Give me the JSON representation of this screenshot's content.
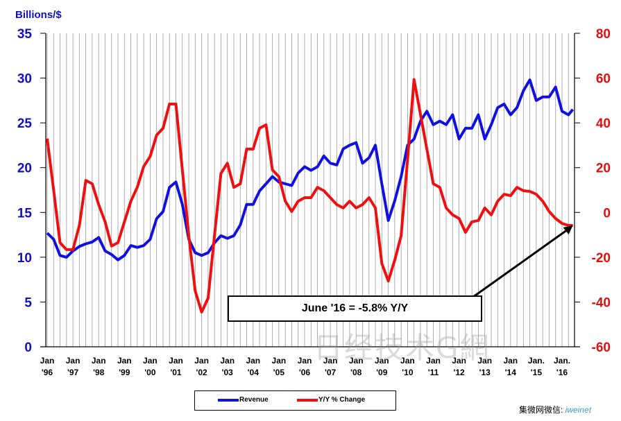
{
  "chart_data": {
    "type": "line",
    "title": "",
    "ylabel": "Billions/$",
    "ylim": [
      0,
      35
    ],
    "y2lim": [
      -60,
      80
    ],
    "yticks": [
      "0",
      "5",
      "10",
      "15",
      "20",
      "25",
      "30",
      "35"
    ],
    "y2ticks": [
      "-60",
      "-40",
      "-20",
      "0",
      "20",
      "40",
      "60",
      "80"
    ],
    "xlim": [
      1996.0,
      2016.42
    ],
    "xticks": [
      {
        "l1": "Jan",
        "l2": "'96"
      },
      {
        "l1": "Jan",
        "l2": "'97"
      },
      {
        "l1": "Jan",
        "l2": "'98"
      },
      {
        "l1": "Jan",
        "l2": "'99"
      },
      {
        "l1": "Jan",
        "l2": "'00"
      },
      {
        "l1": "Jan",
        "l2": "'01"
      },
      {
        "l1": "Jan",
        "l2": "'02"
      },
      {
        "l1": "Jan",
        "l2": "'03"
      },
      {
        "l1": "Jan",
        "l2": "'04"
      },
      {
        "l1": "Jan",
        "l2": "'05"
      },
      {
        "l1": "Jan",
        "l2": "'06"
      },
      {
        "l1": "Jan",
        "l2": "'07"
      },
      {
        "l1": "Jan",
        "l2": "'08"
      },
      {
        "l1": "Jan",
        "l2": "'09"
      },
      {
        "l1": "Jan",
        "l2": "'10"
      },
      {
        "l1": "Jan",
        "l2": "'11"
      },
      {
        "l1": "Jan",
        "l2": "'12"
      },
      {
        "l1": "Jan",
        "l2": "'13"
      },
      {
        "l1": "Jan",
        "l2": "'14"
      },
      {
        "l1": "Jan.",
        "l2": "'15"
      },
      {
        "l1": "Jan.",
        "l2": "'16"
      }
    ],
    "grid": {
      "vertical": true,
      "horizontal": false
    },
    "legend_placement": "bottom",
    "x": [
      1996.0,
      1996.25,
      1996.5,
      1996.75,
      1997.0,
      1997.25,
      1997.5,
      1997.75,
      1998.0,
      1998.25,
      1998.5,
      1998.75,
      1999.0,
      1999.25,
      1999.5,
      1999.75,
      2000.0,
      2000.25,
      2000.5,
      2000.75,
      2001.0,
      2001.25,
      2001.5,
      2001.75,
      2002.0,
      2002.25,
      2002.5,
      2002.75,
      2003.0,
      2003.25,
      2003.5,
      2003.75,
      2004.0,
      2004.25,
      2004.5,
      2004.75,
      2005.0,
      2005.25,
      2005.5,
      2005.75,
      2006.0,
      2006.25,
      2006.5,
      2006.75,
      2007.0,
      2007.25,
      2007.5,
      2007.75,
      2008.0,
      2008.25,
      2008.5,
      2008.75,
      2009.0,
      2009.25,
      2009.5,
      2009.75,
      2010.0,
      2010.25,
      2010.5,
      2010.75,
      2011.0,
      2011.25,
      2011.5,
      2011.75,
      2012.0,
      2012.25,
      2012.5,
      2012.75,
      2013.0,
      2013.25,
      2013.5,
      2013.75,
      2014.0,
      2014.25,
      2014.5,
      2014.75,
      2015.0,
      2015.25,
      2015.5,
      2015.75,
      2016.0,
      2016.25,
      2016.42
    ],
    "series": [
      {
        "name": "Revenue",
        "axis": "left",
        "color": "#1010e0",
        "values": [
          12.7,
          12.0,
          10.2,
          10.0,
          10.7,
          11.2,
          11.5,
          11.7,
          12.2,
          10.7,
          10.3,
          9.7,
          10.2,
          11.3,
          11.1,
          11.3,
          12.0,
          14.3,
          15.1,
          17.8,
          18.4,
          15.9,
          12.0,
          10.5,
          10.2,
          10.5,
          11.6,
          12.4,
          12.1,
          12.4,
          13.6,
          15.9,
          15.9,
          17.4,
          18.2,
          19.0,
          18.4,
          18.2,
          18.0,
          19.4,
          20.1,
          19.7,
          20.1,
          21.3,
          20.5,
          20.3,
          22.1,
          22.5,
          22.8,
          20.5,
          21.1,
          22.5,
          18.2,
          14.1,
          16.3,
          19.0,
          22.5,
          23.2,
          25.2,
          26.3,
          24.8,
          25.2,
          24.8,
          25.9,
          23.2,
          24.4,
          24.4,
          25.9,
          23.2,
          24.8,
          26.7,
          27.1,
          25.9,
          26.7,
          28.6,
          29.8,
          27.5,
          27.9,
          27.9,
          29.0,
          26.3,
          25.9,
          26.5
        ]
      },
      {
        "name": "Y/Y % Change",
        "axis": "right",
        "color": "#ee1010",
        "values": [
          33,
          10,
          -13.5,
          -16.6,
          -16.6,
          -5.8,
          14.3,
          12.8,
          3.5,
          -4.2,
          -15,
          -13.5,
          -4.2,
          5,
          11.2,
          20.5,
          25,
          34.5,
          37.6,
          48.4,
          48.4,
          19,
          -10.4,
          -35,
          -44.5,
          -38.3,
          -10.4,
          17.4,
          22,
          11.2,
          12.8,
          28.3,
          28.3,
          37.6,
          39.1,
          19,
          16,
          5,
          0.4,
          5,
          6.6,
          6.6,
          11.2,
          9.7,
          6.6,
          3.5,
          2,
          5,
          2,
          3.5,
          6.6,
          2,
          -22.8,
          -30.6,
          -21.3,
          -10.4,
          23.6,
          59.3,
          43.8,
          28.3,
          12.8,
          11.2,
          2,
          -1.1,
          -2.7,
          -8.9,
          -4.2,
          -3.6,
          2,
          -1.1,
          5,
          8.1,
          7.5,
          11.2,
          9.7,
          9.4,
          8.1,
          5,
          0.4,
          -2.7,
          -4.9,
          -5.8,
          -5.8
        ]
      }
    ],
    "annotation": "June '16 = -5.8% Y/Y"
  },
  "credit": {
    "prefix": "集微网微信: ",
    "handle": "iweinet"
  },
  "watermark": "日经技术G網"
}
